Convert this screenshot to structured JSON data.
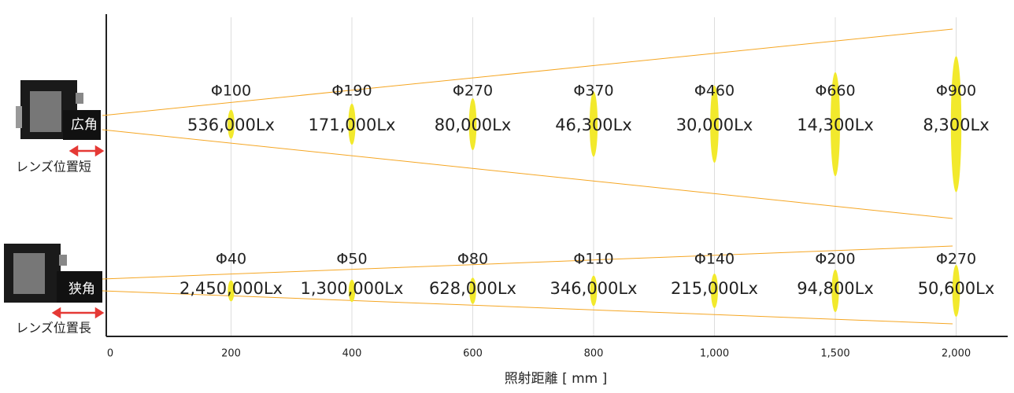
{
  "chart_data": {
    "type": "beam",
    "xlabel": "照射距離 [ mm ]",
    "categories": [
      "0",
      "200",
      "400",
      "600",
      "800",
      "1,000",
      "1,500",
      "2,000"
    ],
    "beam_color": "#f5a623",
    "spot_color": "#f2e92c",
    "series": [
      {
        "name": "広角",
        "lens_position": "レンズ位置短",
        "values": [
          null,
          100,
          190,
          270,
          370,
          460,
          660,
          900
        ],
        "value_labels": [
          null,
          "Φ100",
          "Φ190",
          "Φ270",
          "Φ370",
          "Φ460",
          "Φ660",
          "Φ900"
        ],
        "illuminance": [
          null,
          536000,
          171000,
          80000,
          46300,
          30000,
          14300,
          8300
        ],
        "illuminance_labels": [
          null,
          "536,000Lx",
          "171,000Lx",
          "80,000Lx",
          "46,300Lx",
          "30,000Lx",
          "14,300Lx",
          "8,300Lx"
        ]
      },
      {
        "name": "狭角",
        "lens_position": "レンズ位置長",
        "values": [
          null,
          40,
          50,
          80,
          110,
          140,
          200,
          270
        ],
        "value_labels": [
          null,
          "Φ40",
          "Φ50",
          "Φ80",
          "Φ110",
          "Φ140",
          "Φ200",
          "Φ270"
        ],
        "illuminance": [
          null,
          2450000,
          1300000,
          628000,
          346000,
          215000,
          94800,
          50600
        ],
        "illuminance_labels": [
          null,
          "2,450,000Lx",
          "1,300,000Lx",
          "628,000Lx",
          "346,000Lx",
          "215,000Lx",
          "94,800Lx",
          "50,600Lx"
        ]
      }
    ]
  }
}
